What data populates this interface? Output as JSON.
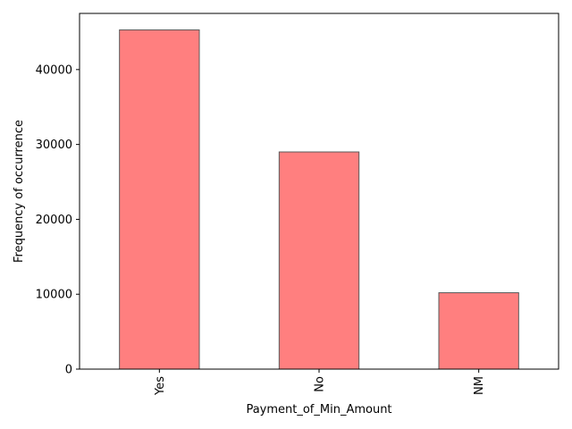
{
  "chart_data": {
    "type": "bar",
    "title": "",
    "xlabel": "Payment_of_Min_Amount",
    "ylabel": "Frequency of occurrence",
    "categories": [
      "Yes",
      "No",
      "NM"
    ],
    "values": [
      45300,
      29000,
      10200
    ],
    "ylim": [
      0,
      47500
    ],
    "yticks": [
      0,
      10000,
      20000,
      30000,
      40000
    ],
    "ytick_labels": [
      "0",
      "10000",
      "20000",
      "30000",
      "40000"
    ],
    "grid": false,
    "bar_color": "#ff7f7f",
    "bar_edge_color": "#5a5a5a",
    "x_tick_rotation": "vertical"
  }
}
